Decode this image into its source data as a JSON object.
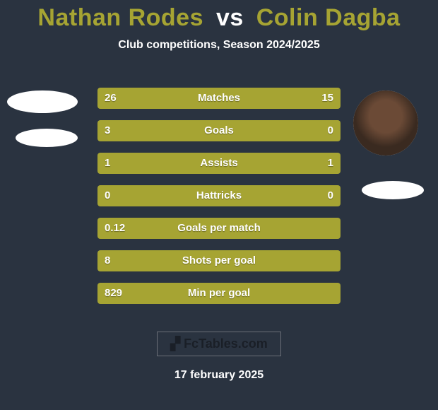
{
  "title": {
    "player1": "Nathan Rodes",
    "vs": "vs",
    "player2": "Colin Dagba",
    "player1_color": "#a6a433",
    "player2_color": "#a6a433",
    "vs_color": "#ffffff",
    "fontsize": 34
  },
  "subtitle": "Club competitions, Season 2024/2025",
  "bars": {
    "track_width": 344,
    "height": 30,
    "gap": 16,
    "left_color": "#a6a433",
    "right_color": "#a6a433",
    "label_color": "#ffffff",
    "label_fontsize": 15,
    "rows": [
      {
        "label": "Matches",
        "left_val": "26",
        "right_val": "15",
        "left_frac": 0.76,
        "right_frac": 0.24
      },
      {
        "label": "Goals",
        "left_val": "3",
        "right_val": "0",
        "left_frac": 0.78,
        "right_frac": 0.22
      },
      {
        "label": "Assists",
        "left_val": "1",
        "right_val": "1",
        "left_frac": 0.96,
        "right_frac": 0.04
      },
      {
        "label": "Hattricks",
        "left_val": "0",
        "right_val": "0",
        "left_frac": 0.96,
        "right_frac": 0.04
      },
      {
        "label": "Goals per match",
        "left_val": "0.12",
        "right_val": "",
        "left_frac": 0.96,
        "right_frac": 0.04
      },
      {
        "label": "Shots per goal",
        "left_val": "8",
        "right_val": "",
        "left_frac": 0.96,
        "right_frac": 0.04
      },
      {
        "label": "Min per goal",
        "left_val": "829",
        "right_val": "",
        "left_frac": 0.96,
        "right_frac": 0.04
      }
    ]
  },
  "brand": {
    "name": "FcTables.com",
    "logo_mark": "▞"
  },
  "date": "17 february 2025",
  "background_color": "#2a3340"
}
